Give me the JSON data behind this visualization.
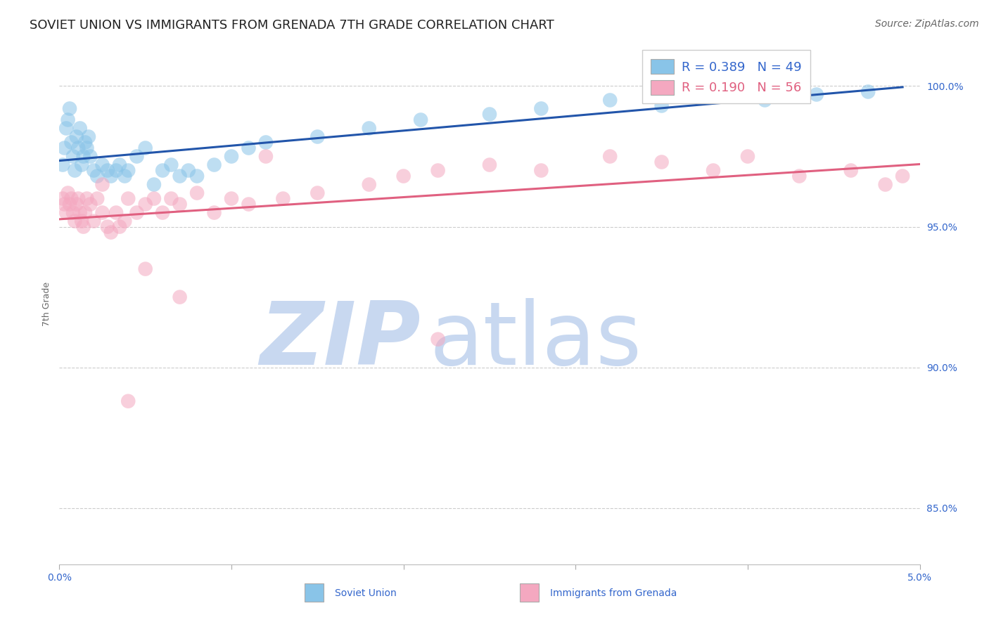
{
  "title": "SOVIET UNION VS IMMIGRANTS FROM GRENADA 7TH GRADE CORRELATION CHART",
  "source": "Source: ZipAtlas.com",
  "ylabel": "7th Grade",
  "watermark_zip": "ZIP",
  "watermark_atlas": "atlas",
  "legend_blue_r": "R = 0.389",
  "legend_blue_n": "N = 49",
  "legend_pink_r": "R = 0.190",
  "legend_pink_n": "N = 56",
  "legend_blue_label": "Soviet Union",
  "legend_pink_label": "Immigrants from Grenada",
  "xlim": [
    0.0,
    5.0
  ],
  "ylim": [
    83.0,
    101.5
  ],
  "yticks": [
    85.0,
    90.0,
    95.0,
    100.0
  ],
  "blue_color": "#89c4e8",
  "pink_color": "#f4a8c0",
  "blue_line_color": "#2255aa",
  "pink_line_color": "#e06080",
  "grid_color": "#cccccc",
  "axis_label_color": "#3366cc",
  "watermark_color_zip": "#c8d8f0",
  "watermark_color_atlas": "#c8d8f0",
  "background_color": "#ffffff",
  "title_fontsize": 13,
  "axis_label_fontsize": 9,
  "tick_fontsize": 10,
  "legend_fontsize": 13,
  "source_fontsize": 10,
  "blue_x": [
    0.02,
    0.03,
    0.04,
    0.05,
    0.06,
    0.07,
    0.08,
    0.09,
    0.1,
    0.11,
    0.12,
    0.13,
    0.14,
    0.15,
    0.16,
    0.17,
    0.18,
    0.2,
    0.22,
    0.25,
    0.28,
    0.3,
    0.33,
    0.35,
    0.38,
    0.4,
    0.45,
    0.5,
    0.55,
    0.6,
    0.65,
    0.7,
    0.75,
    0.8,
    0.9,
    1.0,
    1.1,
    1.2,
    1.5,
    1.8,
    2.1,
    2.5,
    2.8,
    3.2,
    3.5,
    3.8,
    4.1,
    4.4,
    4.7
  ],
  "blue_y": [
    97.2,
    97.8,
    98.5,
    98.8,
    99.2,
    98.0,
    97.5,
    97.0,
    98.2,
    97.8,
    98.5,
    97.2,
    97.5,
    98.0,
    97.8,
    98.2,
    97.5,
    97.0,
    96.8,
    97.2,
    97.0,
    96.8,
    97.0,
    97.2,
    96.8,
    97.0,
    97.5,
    97.8,
    96.5,
    97.0,
    97.2,
    96.8,
    97.0,
    96.8,
    97.2,
    97.5,
    97.8,
    98.0,
    98.2,
    98.5,
    98.8,
    99.0,
    99.2,
    99.5,
    99.3,
    99.6,
    99.5,
    99.7,
    99.8
  ],
  "pink_x": [
    0.02,
    0.03,
    0.04,
    0.05,
    0.06,
    0.07,
    0.08,
    0.09,
    0.1,
    0.11,
    0.12,
    0.13,
    0.14,
    0.15,
    0.16,
    0.18,
    0.2,
    0.22,
    0.25,
    0.28,
    0.3,
    0.33,
    0.38,
    0.4,
    0.45,
    0.5,
    0.55,
    0.6,
    0.65,
    0.7,
    0.8,
    0.9,
    1.0,
    1.1,
    1.3,
    1.5,
    1.8,
    2.0,
    2.2,
    2.5,
    2.8,
    3.2,
    3.5,
    3.8,
    4.0,
    4.3,
    4.6,
    4.8,
    4.9,
    0.25,
    0.35,
    0.5,
    0.7,
    1.2,
    2.2,
    0.4
  ],
  "pink_y": [
    96.0,
    95.8,
    95.5,
    96.2,
    95.8,
    96.0,
    95.5,
    95.2,
    95.8,
    96.0,
    95.5,
    95.2,
    95.0,
    95.5,
    96.0,
    95.8,
    95.2,
    96.0,
    95.5,
    95.0,
    94.8,
    95.5,
    95.2,
    96.0,
    95.5,
    95.8,
    96.0,
    95.5,
    96.0,
    95.8,
    96.2,
    95.5,
    96.0,
    95.8,
    96.0,
    96.2,
    96.5,
    96.8,
    97.0,
    97.2,
    97.0,
    97.5,
    97.3,
    97.0,
    97.5,
    96.8,
    97.0,
    96.5,
    96.8,
    96.5,
    95.0,
    93.5,
    92.5,
    97.5,
    91.0,
    88.8
  ]
}
